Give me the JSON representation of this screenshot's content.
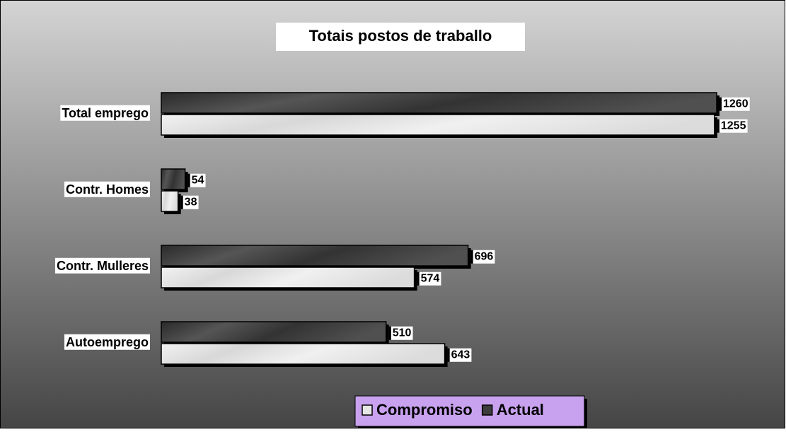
{
  "chart_data": {
    "type": "bar",
    "orientation": "horizontal",
    "title": "Totais postos de traballo",
    "categories": [
      "Total emprego",
      "Contr. Homes",
      "Contr. Mulleres",
      "Autoemprego"
    ],
    "series": [
      {
        "name": "Compromiso",
        "color": "#e6e6e6",
        "values": [
          1255,
          38,
          574,
          643
        ]
      },
      {
        "name": "Actual",
        "color": "#3c3c3c",
        "values": [
          1260,
          54,
          696,
          510
        ]
      }
    ],
    "xlim": [
      0,
      1260
    ],
    "legend": "bottom"
  }
}
